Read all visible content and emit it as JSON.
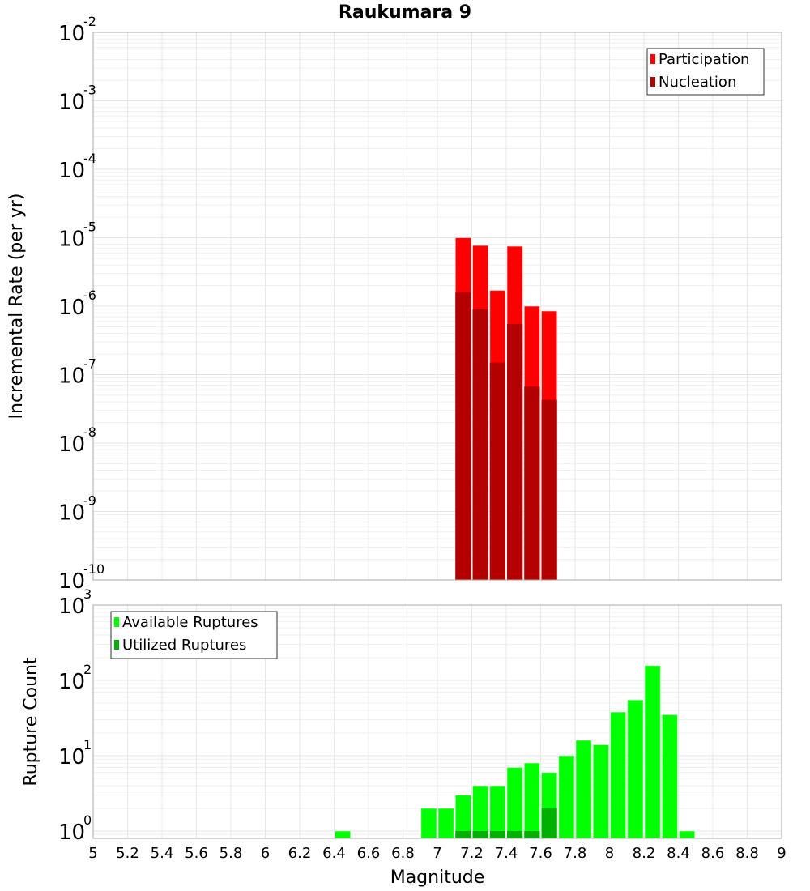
{
  "chart_data": [
    {
      "type": "bar",
      "title": "Raukumara 9",
      "xlabel": "",
      "ylabel": "Incremental Rate (per yr)",
      "yscale": "log",
      "xlim": [
        5,
        9
      ],
      "ylim_exponents": [
        -10,
        -2
      ],
      "grid": true,
      "legend_position": "top-right",
      "bin_width": 0.1,
      "x": [
        7.15,
        7.25,
        7.35,
        7.45,
        7.55,
        7.65
      ],
      "series": [
        {
          "name": "Participation",
          "color": "#ff0000",
          "values": [
            1e-05,
            7.7e-06,
            1.7e-06,
            7.5e-06,
            1e-06,
            8.5e-07
          ]
        },
        {
          "name": "Nucleation",
          "color": "#b30000",
          "values": [
            1.6e-06,
            9e-07,
            1.5e-07,
            5.5e-07,
            6.7e-08,
            4.3e-08
          ]
        }
      ]
    },
    {
      "type": "bar",
      "xlabel": "Magnitude",
      "ylabel": "Rupture Count",
      "yscale": "log",
      "xlim": [
        5,
        9
      ],
      "ylim_exponents": [
        0,
        3
      ],
      "grid": true,
      "legend_position": "top-left",
      "bin_width": 0.1,
      "x": [
        6.45,
        6.95,
        7.05,
        7.15,
        7.25,
        7.35,
        7.45,
        7.55,
        7.65,
        7.75,
        7.85,
        7.95,
        8.05,
        8.15,
        8.25,
        8.35,
        8.45
      ],
      "series": [
        {
          "name": "Available Ruptures",
          "color": "#00ff00",
          "values": [
            1,
            2,
            2,
            3,
            4,
            4,
            7,
            8,
            6,
            10,
            16,
            14,
            38,
            55,
            157,
            35,
            1
          ]
        },
        {
          "name": "Utilized Ruptures",
          "color": "#00b000",
          "values": [
            0,
            0,
            0,
            1,
            1,
            1,
            1,
            1,
            2,
            0,
            0,
            0,
            0,
            0,
            0,
            0,
            0
          ]
        }
      ]
    }
  ],
  "x_tick_labels": [
    "5",
    "5.2",
    "5.4",
    "5.6",
    "5.8",
    "6",
    "6.2",
    "6.4",
    "6.6",
    "6.8",
    "7",
    "7.2",
    "7.4",
    "7.6",
    "7.8",
    "8",
    "8.2",
    "8.4",
    "8.6",
    "8.8",
    "9"
  ],
  "tick_base": "10"
}
